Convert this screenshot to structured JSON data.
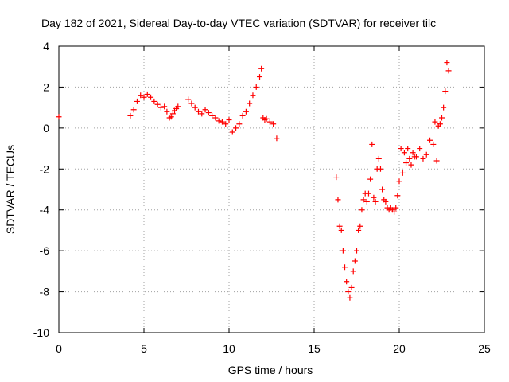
{
  "chart_data": {
    "type": "scatter",
    "title": "Day 182 of 2021, Sidereal Day-to-day VTEC variation (SDTVAR) for receiver tilc",
    "xlabel": "GPS time / hours",
    "ylabel": "SDTVAR / TECUs",
    "xlim": [
      0,
      25
    ],
    "ylim": [
      -10,
      4
    ],
    "xticks": [
      "0",
      "5",
      "10",
      "15",
      "20",
      "25"
    ],
    "yticks": [
      "-10",
      "-8",
      "-6",
      "-4",
      "-2",
      "0",
      "2",
      "4"
    ],
    "grid": true,
    "marker": "plus",
    "color": "#ff0000",
    "series": [
      {
        "x": [
          0.0,
          4.2,
          4.4,
          4.6,
          4.8,
          5.0,
          5.2,
          5.4,
          5.6,
          5.8,
          6.0,
          6.2,
          6.35,
          6.5,
          6.6,
          6.7,
          6.8,
          6.9,
          7.0,
          7.6,
          7.8,
          8.0,
          8.2,
          8.4,
          8.6,
          8.8,
          9.0,
          9.2,
          9.4,
          9.6,
          9.8,
          10.0,
          10.2,
          10.4,
          10.6,
          10.8,
          11.0,
          11.2,
          11.4,
          11.6,
          11.8,
          11.9,
          12.0,
          12.1,
          12.2,
          12.4,
          12.6,
          12.8,
          16.3,
          16.4,
          16.5,
          16.6,
          16.7,
          16.8,
          16.9,
          17.0,
          17.1,
          17.2,
          17.3,
          17.4,
          17.5,
          17.6,
          17.7,
          17.8,
          17.9,
          18.0,
          18.1,
          18.2,
          18.3,
          18.4,
          18.5,
          18.6,
          18.7,
          18.8,
          18.9,
          19.0,
          19.1,
          19.2,
          19.3,
          19.4,
          19.5,
          19.6,
          19.7,
          19.8,
          19.9,
          20.0,
          20.1,
          20.2,
          20.3,
          20.4,
          20.5,
          20.6,
          20.7,
          20.8,
          20.9,
          21.0,
          21.2,
          21.4,
          21.6,
          21.8,
          22.0,
          22.1,
          22.2,
          22.3,
          22.4,
          22.5,
          22.6,
          22.7,
          22.8,
          22.9
        ],
        "y": [
          0.55,
          0.6,
          0.9,
          1.3,
          1.6,
          1.5,
          1.65,
          1.5,
          1.3,
          1.15,
          1.0,
          1.05,
          0.8,
          0.5,
          0.55,
          0.7,
          0.85,
          0.95,
          1.05,
          1.4,
          1.2,
          1.0,
          0.8,
          0.7,
          0.9,
          0.75,
          0.6,
          0.5,
          0.35,
          0.3,
          0.2,
          0.4,
          -0.2,
          0.0,
          0.2,
          0.6,
          0.8,
          1.2,
          1.6,
          2.0,
          2.5,
          2.9,
          0.5,
          0.4,
          0.45,
          0.3,
          0.2,
          -0.5,
          -2.4,
          -3.5,
          -4.8,
          -5.0,
          -6.0,
          -6.8,
          -7.5,
          -8.0,
          -8.3,
          -7.8,
          -7.0,
          -6.5,
          -6.0,
          -5.0,
          -4.8,
          -4.0,
          -3.5,
          -3.2,
          -3.6,
          -3.2,
          -2.5,
          -0.8,
          -3.4,
          -3.6,
          -2.0,
          -1.5,
          -2.0,
          -3.0,
          -3.5,
          -3.6,
          -3.9,
          -4.0,
          -3.9,
          -4.0,
          -4.1,
          -3.9,
          -3.3,
          -2.6,
          -1.0,
          -2.2,
          -1.2,
          -1.7,
          -1.0,
          -1.5,
          -1.8,
          -1.2,
          -1.4,
          -1.4,
          -1.0,
          -1.5,
          -1.3,
          -0.6,
          -0.8,
          0.3,
          -1.6,
          0.1,
          0.2,
          0.5,
          1.0,
          1.8,
          3.2,
          2.8
        ]
      }
    ]
  }
}
